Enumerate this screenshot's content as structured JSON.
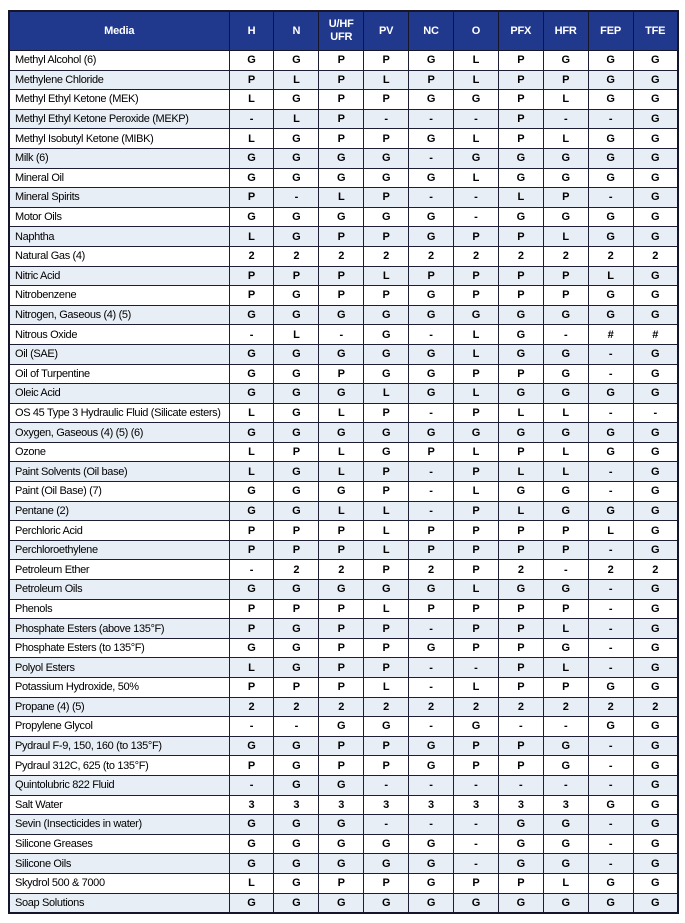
{
  "colors": {
    "header_bg": "#21398C",
    "header_text": "#FFFFFF",
    "row_alt_bg": "#E8EEF6",
    "row_bg": "#FFFFFF",
    "border": "#15152B",
    "cell_text": "#000000"
  },
  "table": {
    "columns": [
      {
        "lines": [
          "Media"
        ]
      },
      {
        "lines": [
          "H"
        ]
      },
      {
        "lines": [
          "N"
        ]
      },
      {
        "lines": [
          "U/HF",
          "UFR"
        ]
      },
      {
        "lines": [
          "PV"
        ]
      },
      {
        "lines": [
          "NC"
        ]
      },
      {
        "lines": [
          "O"
        ]
      },
      {
        "lines": [
          "PFX"
        ]
      },
      {
        "lines": [
          "HFR"
        ]
      },
      {
        "lines": [
          "FEP"
        ]
      },
      {
        "lines": [
          "TFE"
        ]
      }
    ],
    "rows": [
      {
        "media": "Methyl Alcohol (6)",
        "values": [
          "G",
          "G",
          "P",
          "P",
          "G",
          "L",
          "P",
          "G",
          "G",
          "G"
        ]
      },
      {
        "media": "Methylene Chloride",
        "values": [
          "P",
          "L",
          "P",
          "L",
          "P",
          "L",
          "P",
          "P",
          "G",
          "G"
        ]
      },
      {
        "media": "Methyl Ethyl Ketone (MEK)",
        "values": [
          "L",
          "G",
          "P",
          "P",
          "G",
          "G",
          "P",
          "L",
          "G",
          "G"
        ]
      },
      {
        "media": "Methyl Ethyl Ketone Peroxide (MEKP)",
        "values": [
          "-",
          "L",
          "P",
          "-",
          "-",
          "-",
          "P",
          "-",
          "-",
          "G"
        ]
      },
      {
        "media": "Methyl Isobutyl Ketone (MIBK)",
        "values": [
          "L",
          "G",
          "P",
          "P",
          "G",
          "L",
          "P",
          "L",
          "G",
          "G"
        ]
      },
      {
        "media": "Milk (6)",
        "values": [
          "G",
          "G",
          "G",
          "G",
          "-",
          "G",
          "G",
          "G",
          "G",
          "G"
        ]
      },
      {
        "media": "Mineral Oil",
        "values": [
          "G",
          "G",
          "G",
          "G",
          "G",
          "L",
          "G",
          "G",
          "G",
          "G"
        ]
      },
      {
        "media": "Mineral Spirits",
        "values": [
          "P",
          "-",
          "L",
          "P",
          "-",
          "-",
          "L",
          "P",
          "-",
          "G"
        ]
      },
      {
        "media": "Motor Oils",
        "values": [
          "G",
          "G",
          "G",
          "G",
          "G",
          "-",
          "G",
          "G",
          "G",
          "G"
        ]
      },
      {
        "media": "Naphtha",
        "values": [
          "L",
          "G",
          "P",
          "P",
          "G",
          "P",
          "P",
          "L",
          "G",
          "G"
        ]
      },
      {
        "media": "Natural Gas (4)",
        "values": [
          "2",
          "2",
          "2",
          "2",
          "2",
          "2",
          "2",
          "2",
          "2",
          "2"
        ]
      },
      {
        "media": "Nitric Acid",
        "values": [
          "P",
          "P",
          "P",
          "L",
          "P",
          "P",
          "P",
          "P",
          "L",
          "G"
        ]
      },
      {
        "media": "Nitrobenzene",
        "values": [
          "P",
          "G",
          "P",
          "P",
          "G",
          "P",
          "P",
          "P",
          "G",
          "G"
        ]
      },
      {
        "media": "Nitrogen, Gaseous (4) (5)",
        "values": [
          "G",
          "G",
          "G",
          "G",
          "G",
          "G",
          "G",
          "G",
          "G",
          "G"
        ]
      },
      {
        "media": "Nitrous Oxide",
        "values": [
          "-",
          "L",
          "-",
          "G",
          "-",
          "L",
          "G",
          "-",
          "#",
          "#"
        ]
      },
      {
        "media": "Oil (SAE)",
        "values": [
          "G",
          "G",
          "G",
          "G",
          "G",
          "L",
          "G",
          "G",
          "-",
          "G"
        ]
      },
      {
        "media": "Oil of Turpentine",
        "values": [
          "G",
          "G",
          "P",
          "G",
          "G",
          "P",
          "P",
          "G",
          "-",
          "G"
        ]
      },
      {
        "media": "Oleic Acid",
        "values": [
          "G",
          "G",
          "G",
          "L",
          "G",
          "L",
          "G",
          "G",
          "G",
          "G"
        ]
      },
      {
        "media": "OS 45 Type 3 Hydraulic Fluid (Silicate esters)",
        "values": [
          "L",
          "G",
          "L",
          "P",
          "-",
          "P",
          "L",
          "L",
          "-",
          "-"
        ]
      },
      {
        "media": "Oxygen, Gaseous (4) (5) (6)",
        "values": [
          "G",
          "G",
          "G",
          "G",
          "G",
          "G",
          "G",
          "G",
          "G",
          "G"
        ]
      },
      {
        "media": "Ozone",
        "values": [
          "L",
          "P",
          "L",
          "G",
          "P",
          "L",
          "P",
          "L",
          "G",
          "G"
        ]
      },
      {
        "media": "Paint Solvents (Oil base)",
        "values": [
          "L",
          "G",
          "L",
          "P",
          "-",
          "P",
          "L",
          "L",
          "-",
          "G"
        ]
      },
      {
        "media": "Paint (Oil Base) (7)",
        "values": [
          "G",
          "G",
          "G",
          "P",
          "-",
          "L",
          "G",
          "G",
          "-",
          "G"
        ]
      },
      {
        "media": "Pentane (2)",
        "values": [
          "G",
          "G",
          "L",
          "L",
          "-",
          "P",
          "L",
          "G",
          "G",
          "G"
        ]
      },
      {
        "media": "Perchloric Acid",
        "values": [
          "P",
          "P",
          "P",
          "L",
          "P",
          "P",
          "P",
          "P",
          "L",
          "G"
        ]
      },
      {
        "media": "Perchloroethylene",
        "values": [
          "P",
          "P",
          "P",
          "L",
          "P",
          "P",
          "P",
          "P",
          "-",
          "G"
        ]
      },
      {
        "media": "Petroleum Ether",
        "values": [
          "-",
          "2",
          "2",
          "P",
          "2",
          "P",
          "2",
          "-",
          "2",
          "2"
        ]
      },
      {
        "media": "Petroleum Oils",
        "values": [
          "G",
          "G",
          "G",
          "G",
          "G",
          "L",
          "G",
          "G",
          "-",
          "G"
        ]
      },
      {
        "media": "Phenols",
        "values": [
          "P",
          "P",
          "P",
          "L",
          "P",
          "P",
          "P",
          "P",
          "-",
          "G"
        ]
      },
      {
        "media": "Phosphate Esters (above 135°F)",
        "values": [
          "P",
          "G",
          "P",
          "P",
          "-",
          "P",
          "P",
          "L",
          "-",
          "G"
        ]
      },
      {
        "media": "Phosphate Esters (to 135°F)",
        "values": [
          "G",
          "G",
          "P",
          "P",
          "G",
          "P",
          "P",
          "G",
          "-",
          "G"
        ]
      },
      {
        "media": "Polyol Esters",
        "values": [
          "L",
          "G",
          "P",
          "P",
          "-",
          "-",
          "P",
          "L",
          "-",
          "G"
        ]
      },
      {
        "media": "Potassium Hydroxide, 50%",
        "values": [
          "P",
          "P",
          "P",
          "L",
          "-",
          "L",
          "P",
          "P",
          "G",
          "G"
        ]
      },
      {
        "media": "Propane (4) (5)",
        "values": [
          "2",
          "2",
          "2",
          "2",
          "2",
          "2",
          "2",
          "2",
          "2",
          "2"
        ]
      },
      {
        "media": "Propylene Glycol",
        "values": [
          "-",
          "-",
          "G",
          "G",
          "-",
          "G",
          "-",
          "-",
          "G",
          "G"
        ]
      },
      {
        "media": "Pydraul F-9, 150, 160 (to 135°F)",
        "values": [
          "G",
          "G",
          "P",
          "P",
          "G",
          "P",
          "P",
          "G",
          "-",
          "G"
        ]
      },
      {
        "media": "Pydraul 312C, 625 (to 135°F)",
        "values": [
          "P",
          "G",
          "P",
          "P",
          "G",
          "P",
          "P",
          "G",
          "-",
          "G"
        ]
      },
      {
        "media": "Quintolubric 822 Fluid",
        "values": [
          "-",
          "G",
          "G",
          "-",
          "-",
          "-",
          "-",
          "-",
          "-",
          "G"
        ]
      },
      {
        "media": "Salt Water",
        "values": [
          "3",
          "3",
          "3",
          "3",
          "3",
          "3",
          "3",
          "3",
          "G",
          "G"
        ]
      },
      {
        "media": "Sevin (Insecticides in water)",
        "values": [
          "G",
          "G",
          "G",
          "-",
          "-",
          "-",
          "G",
          "G",
          "-",
          "G"
        ]
      },
      {
        "media": "Silicone Greases",
        "values": [
          "G",
          "G",
          "G",
          "G",
          "G",
          "-",
          "G",
          "G",
          "-",
          "G"
        ]
      },
      {
        "media": "Silicone Oils",
        "values": [
          "G",
          "G",
          "G",
          "G",
          "G",
          "-",
          "G",
          "G",
          "-",
          "G"
        ]
      },
      {
        "media": "Skydrol 500 & 7000",
        "values": [
          "L",
          "G",
          "P",
          "P",
          "G",
          "P",
          "P",
          "L",
          "G",
          "G"
        ]
      },
      {
        "media": "Soap Solutions",
        "values": [
          "G",
          "G",
          "G",
          "G",
          "G",
          "G",
          "G",
          "G",
          "G",
          "G"
        ]
      }
    ]
  }
}
